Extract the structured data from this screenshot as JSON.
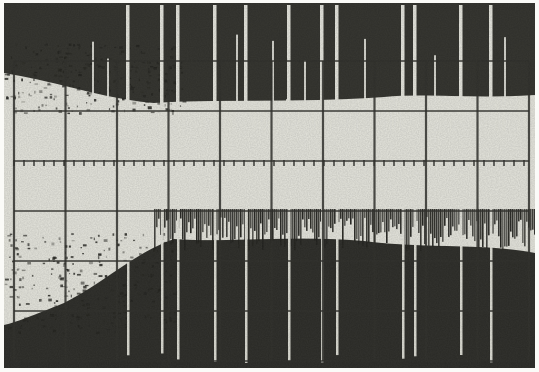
{
  "image": {
    "subject": "oscilloscope-trace-photograph",
    "palette": {
      "paper": "#ecece4",
      "ink": "#1c1c18",
      "mid": "#4a4a42",
      "grid": "#2a2a26",
      "frame": "#fbfbf8"
    },
    "graticule": {
      "vertical_divisions": 10,
      "horizontal_divisions": 6
    }
  }
}
